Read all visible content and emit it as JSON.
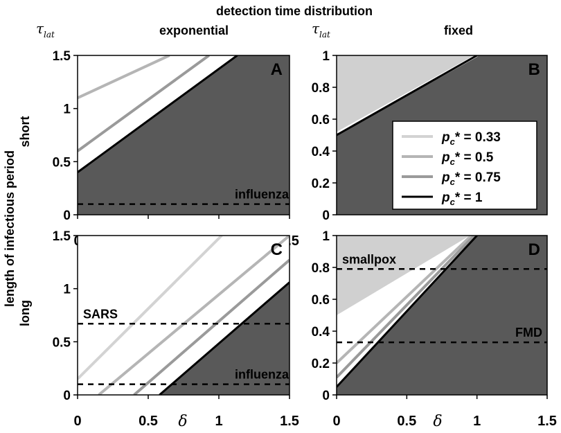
{
  "figure": {
    "header_title": "detection time distribution",
    "col_titles": [
      "exponential",
      "fixed"
    ],
    "y_axis_title": "length of infectious period",
    "row_labels": [
      "short",
      "long"
    ],
    "ylabel_symbol_main": "τ",
    "ylabel_symbol_sub": "lat",
    "xlabel_symbol": "δ",
    "legend": {
      "entries": [
        {
          "label_main": "p",
          "label_sub": "c",
          "label_tail": "* = 0.33",
          "color": "#d3d3d3"
        },
        {
          "label_main": "p",
          "label_sub": "c",
          "label_tail": "* = 0.5",
          "color": "#b5b5b5"
        },
        {
          "label_main": "p",
          "label_sub": "c",
          "label_tail": "* = 0.75",
          "color": "#9a9a9a"
        },
        {
          "label_main": "p",
          "label_sub": "c",
          "label_tail": "* = 1",
          "color": "#000000"
        }
      ]
    },
    "colors": {
      "dark_region": "#595959",
      "light_region": "#d0d0d0",
      "dashed": "#000000"
    }
  },
  "chart_data": [
    {
      "type": "line",
      "panel": "A",
      "xlim": [
        0,
        1.5
      ],
      "ylim": [
        0,
        1.5
      ],
      "xticks": [
        "0",
        "0.5",
        "1",
        "1.5"
      ],
      "yticks": [
        "0",
        "0.5",
        "1",
        "1.5"
      ],
      "shaded_region": {
        "fill": "dark",
        "polygon": [
          [
            0,
            0
          ],
          [
            1.5,
            0
          ],
          [
            1.5,
            1.5
          ],
          [
            1.13,
            1.5
          ],
          [
            0,
            0.4
          ]
        ]
      },
      "series": [
        {
          "name": "pc* = 0.5",
          "x": [
            0,
            0.65
          ],
          "y": [
            1.1,
            1.5
          ],
          "color": "#b5b5b5"
        },
        {
          "name": "pc* = 0.75",
          "x": [
            0,
            0.93
          ],
          "y": [
            0.6,
            1.5
          ],
          "color": "#9a9a9a"
        },
        {
          "name": "pc* = 1",
          "x": [
            0,
            1.13
          ],
          "y": [
            0.4,
            1.5
          ],
          "color": "#000000"
        }
      ],
      "hlines": [
        {
          "y": 0.1,
          "label": "influenza"
        }
      ]
    },
    {
      "type": "area",
      "panel": "B",
      "xlim": [
        0,
        1.5
      ],
      "ylim": [
        0,
        1
      ],
      "xticks": [],
      "yticks": [
        "0",
        "0.2",
        "0.4",
        "0.6",
        "0.8",
        "1"
      ],
      "shaded_regions": [
        {
          "fill": "light",
          "polygon": [
            [
              0,
              0.5
            ],
            [
              1,
              1
            ],
            [
              0,
              1
            ]
          ]
        },
        {
          "fill": "dark",
          "polygon": [
            [
              0,
              0
            ],
            [
              1.5,
              0
            ],
            [
              1.5,
              1
            ],
            [
              1,
              1
            ],
            [
              0,
              0.5
            ]
          ]
        }
      ],
      "series": [
        {
          "name": "pc* = 0.5",
          "x": [
            0,
            1
          ],
          "y": [
            0.51,
            1.0
          ],
          "color": "#ffffff"
        },
        {
          "name": "pc* = 1",
          "x": [
            0,
            1
          ],
          "y": [
            0.5,
            1.0
          ],
          "color": "#000000"
        }
      ],
      "hlines": []
    },
    {
      "type": "line",
      "panel": "C",
      "xlim": [
        0,
        1.5
      ],
      "ylim": [
        0,
        1.5
      ],
      "xticks": [
        "0",
        "0.5",
        "1",
        "1.5"
      ],
      "yticks": [
        "0",
        "0.5",
        "1",
        "1.5"
      ],
      "shaded_region": {
        "fill": "dark",
        "polygon": [
          [
            0.58,
            0
          ],
          [
            1.5,
            0
          ],
          [
            1.5,
            1.06
          ]
        ]
      },
      "series": [
        {
          "name": "pc* = 0.33",
          "x": [
            0,
            1.02
          ],
          "y": [
            0.15,
            1.5
          ],
          "color": "#d3d3d3"
        },
        {
          "name": "pc* = 0.5",
          "x": [
            0.15,
            1.5
          ],
          "y": [
            0,
            1.5
          ],
          "color": "#b5b5b5"
        },
        {
          "name": "pc* = 0.75",
          "x": [
            0.4,
            1.5
          ],
          "y": [
            0,
            1.27
          ],
          "color": "#9a9a9a"
        },
        {
          "name": "pc* = 1",
          "x": [
            0.58,
            1.5
          ],
          "y": [
            0,
            1.06
          ],
          "color": "#000000"
        }
      ],
      "hlines": [
        {
          "y": 0.67,
          "label": "SARS"
        },
        {
          "y": 0.1,
          "label": "influenza"
        }
      ]
    },
    {
      "type": "area",
      "panel": "D",
      "xlim": [
        0,
        1.5
      ],
      "ylim": [
        0,
        1
      ],
      "xticks": [
        "0",
        "0.5",
        "1",
        "1.5"
      ],
      "yticks": [
        "0",
        "0.2",
        "0.4",
        "0.6",
        "0.8",
        "1"
      ],
      "shaded_regions": [
        {
          "fill": "light",
          "polygon": [
            [
              0,
              0.5
            ],
            [
              0.95,
              1
            ],
            [
              0,
              1
            ]
          ]
        },
        {
          "fill": "dark",
          "polygon": [
            [
              0,
              0.05
            ],
            [
              0,
              0
            ],
            [
              1.5,
              0
            ],
            [
              1.5,
              1
            ],
            [
              1,
              1
            ]
          ]
        }
      ],
      "series": [
        {
          "name": "pc* = 0.5",
          "x": [
            0,
            0.96
          ],
          "y": [
            0.2,
            1.0
          ],
          "color": "#b5b5b5"
        },
        {
          "name": "pc* = 0.75",
          "x": [
            0,
            0.98
          ],
          "y": [
            0.11,
            1.0
          ],
          "color": "#9a9a9a"
        },
        {
          "name": "pc* = 1",
          "x": [
            0,
            1.0
          ],
          "y": [
            0.05,
            1.0
          ],
          "color": "#000000"
        }
      ],
      "hlines": [
        {
          "y": 0.79,
          "label": "smallpox"
        },
        {
          "y": 0.33,
          "label": "FMD"
        }
      ]
    }
  ]
}
